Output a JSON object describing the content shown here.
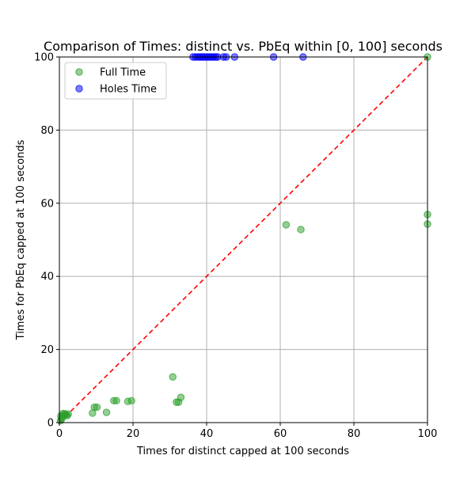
{
  "chart_data": {
    "type": "scatter",
    "title": "Comparison of Times: distinct vs. PbEq within [0, 100] seconds",
    "xlabel": "Times for distinct capped at 100 seconds",
    "ylabel": "Times for PbEq capped at 100 seconds",
    "xlim": [
      0,
      100
    ],
    "ylim": [
      0,
      100
    ],
    "xticks": [
      0,
      20,
      40,
      60,
      80,
      100
    ],
    "yticks": [
      0,
      20,
      40,
      60,
      80,
      100
    ],
    "grid": true,
    "legend_position": "top-left",
    "reference_line": {
      "x": [
        0,
        100
      ],
      "y": [
        0,
        100
      ],
      "style": "dashed",
      "color": "#ff0000"
    },
    "series": [
      {
        "name": "Full Time",
        "color": "#2ca02c",
        "points": [
          {
            "x": 0.3,
            "y": 0.5
          },
          {
            "x": 0.6,
            "y": 1.0
          },
          {
            "x": 0.9,
            "y": 1.5
          },
          {
            "x": 1.2,
            "y": 2.0
          },
          {
            "x": 1.5,
            "y": 2.4
          },
          {
            "x": 1.8,
            "y": 2.2
          },
          {
            "x": 2.1,
            "y": 1.9
          },
          {
            "x": 2.4,
            "y": 2.3
          },
          {
            "x": 1.0,
            "y": 2.5
          },
          {
            "x": 0.4,
            "y": 1.8
          },
          {
            "x": 9.0,
            "y": 2.6
          },
          {
            "x": 9.5,
            "y": 4.2
          },
          {
            "x": 10.2,
            "y": 4.2
          },
          {
            "x": 12.8,
            "y": 2.8
          },
          {
            "x": 14.8,
            "y": 6.0
          },
          {
            "x": 15.5,
            "y": 6.0
          },
          {
            "x": 18.6,
            "y": 5.8
          },
          {
            "x": 19.6,
            "y": 6.0
          },
          {
            "x": 30.8,
            "y": 12.5
          },
          {
            "x": 31.8,
            "y": 5.6
          },
          {
            "x": 32.4,
            "y": 5.6
          },
          {
            "x": 33.0,
            "y": 6.9
          },
          {
            "x": 61.6,
            "y": 54.1
          },
          {
            "x": 65.6,
            "y": 52.8
          },
          {
            "x": 100.0,
            "y": 56.9
          },
          {
            "x": 100.0,
            "y": 54.3
          },
          {
            "x": 100.0,
            "y": 100.0
          }
        ]
      },
      {
        "name": "Holes Time",
        "color": "#0000ff",
        "points": [
          {
            "x": 36.3,
            "y": 100
          },
          {
            "x": 36.9,
            "y": 100
          },
          {
            "x": 37.5,
            "y": 100
          },
          {
            "x": 38.0,
            "y": 100
          },
          {
            "x": 38.5,
            "y": 100
          },
          {
            "x": 39.0,
            "y": 100
          },
          {
            "x": 39.5,
            "y": 100
          },
          {
            "x": 40.0,
            "y": 100
          },
          {
            "x": 40.5,
            "y": 100
          },
          {
            "x": 41.0,
            "y": 100
          },
          {
            "x": 41.5,
            "y": 100
          },
          {
            "x": 42.0,
            "y": 100
          },
          {
            "x": 42.5,
            "y": 100
          },
          {
            "x": 43.0,
            "y": 100
          },
          {
            "x": 44.6,
            "y": 100
          },
          {
            "x": 45.3,
            "y": 100
          },
          {
            "x": 47.6,
            "y": 100
          },
          {
            "x": 58.2,
            "y": 100
          },
          {
            "x": 66.2,
            "y": 100
          }
        ]
      }
    ]
  }
}
